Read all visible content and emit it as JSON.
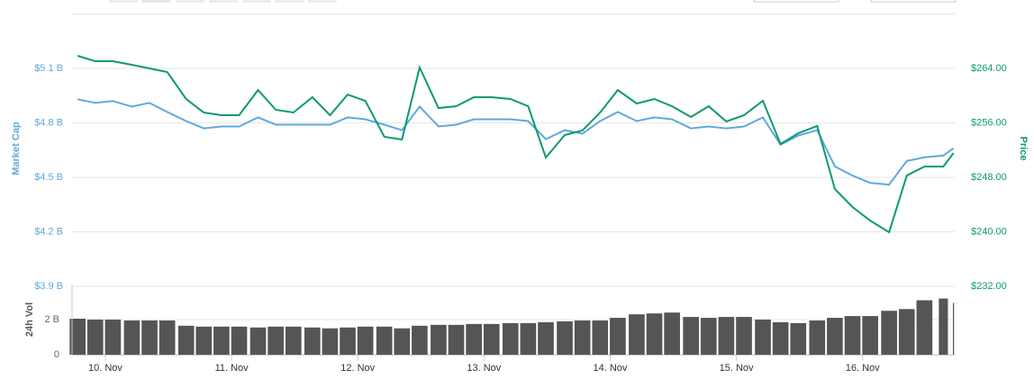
{
  "chart_data": [
    {
      "type": "line",
      "ylabel": "Market Cap",
      "y2label": "Price",
      "x": [
        -0.22,
        -0.08,
        0.06,
        0.21,
        0.35,
        0.49,
        0.64,
        0.78,
        0.92,
        1.06,
        1.21,
        1.35,
        1.49,
        1.64,
        1.78,
        1.92,
        2.06,
        2.21,
        2.35,
        2.49,
        2.64,
        2.78,
        2.92,
        3.06,
        3.21,
        3.35,
        3.49,
        3.64,
        3.78,
        3.92,
        4.06,
        4.21,
        4.35,
        4.49,
        4.64,
        4.78,
        4.92,
        5.06,
        5.21,
        5.35,
        5.49,
        5.64,
        5.78,
        5.92,
        6.06,
        6.21,
        6.35,
        6.49,
        6.64,
        6.72
      ],
      "series": [
        {
          "name": "Market Cap",
          "color": "#5fa9dc",
          "axis": "y",
          "values": [
            4.93,
            4.91,
            4.92,
            4.89,
            4.91,
            4.86,
            4.81,
            4.77,
            4.78,
            4.78,
            4.83,
            4.79,
            4.79,
            4.79,
            4.79,
            4.83,
            4.82,
            4.79,
            4.76,
            4.89,
            4.78,
            4.79,
            4.82,
            4.82,
            4.82,
            4.81,
            4.71,
            4.76,
            4.74,
            4.81,
            4.86,
            4.81,
            4.83,
            4.82,
            4.77,
            4.78,
            4.77,
            4.78,
            4.83,
            4.68,
            4.73,
            4.76,
            4.56,
            4.51,
            4.47,
            4.46,
            4.59,
            4.61,
            4.62,
            4.66
          ]
        },
        {
          "name": "Price",
          "color": "#0c9a6c",
          "axis": "y2",
          "values": [
            265.85,
            265.06,
            265.06,
            264.53,
            264.0,
            263.47,
            259.5,
            257.52,
            257.12,
            257.12,
            260.83,
            257.92,
            257.52,
            259.77,
            257.12,
            260.17,
            259.24,
            253.95,
            253.55,
            264.13,
            258.18,
            258.45,
            259.77,
            259.77,
            259.5,
            258.45,
            250.91,
            254.21,
            254.88,
            257.52,
            260.83,
            258.84,
            259.5,
            258.45,
            256.86,
            258.45,
            256.2,
            257.12,
            259.24,
            252.89,
            254.48,
            255.54,
            246.28,
            243.64,
            241.65,
            239.93,
            248.26,
            249.59,
            249.59,
            251.57
          ]
        }
      ],
      "ylim": [
        3.9,
        5.1
      ],
      "yticks": [
        {
          "value": 3.9,
          "label": "$3.9 B"
        },
        {
          "value": 4.2,
          "label": "$4.2 B"
        },
        {
          "value": 4.5,
          "label": "$4.5 B"
        },
        {
          "value": 4.8,
          "label": "$4.8 B"
        },
        {
          "value": 5.1,
          "label": "$5.1 B"
        }
      ],
      "y2lim": [
        232,
        264
      ],
      "y2ticks": [
        {
          "value": 232,
          "label": "$232.00"
        },
        {
          "value": 240,
          "label": "$240.00"
        },
        {
          "value": 248,
          "label": "$248.00"
        },
        {
          "value": 256,
          "label": "$256.00"
        },
        {
          "value": 264,
          "label": "$264.00"
        }
      ],
      "grid": true
    },
    {
      "type": "bar",
      "ylabel": "24h Vol",
      "color": "#555555",
      "x": [
        -0.22,
        -0.08,
        0.06,
        0.21,
        0.35,
        0.49,
        0.64,
        0.78,
        0.92,
        1.06,
        1.21,
        1.35,
        1.49,
        1.64,
        1.78,
        1.92,
        2.06,
        2.21,
        2.35,
        2.49,
        2.64,
        2.78,
        2.92,
        3.06,
        3.21,
        3.35,
        3.49,
        3.64,
        3.78,
        3.92,
        4.06,
        4.21,
        4.35,
        4.49,
        4.64,
        4.78,
        4.92,
        5.06,
        5.21,
        5.35,
        5.49,
        5.64,
        5.78,
        5.92,
        6.06,
        6.21,
        6.35,
        6.49,
        6.64,
        6.72
      ],
      "values": [
        2.05,
        2.0,
        2.0,
        1.95,
        1.95,
        1.95,
        1.65,
        1.6,
        1.6,
        1.6,
        1.55,
        1.6,
        1.6,
        1.55,
        1.5,
        1.55,
        1.6,
        1.6,
        1.5,
        1.65,
        1.7,
        1.7,
        1.75,
        1.75,
        1.8,
        1.8,
        1.85,
        1.9,
        1.95,
        1.95,
        2.1,
        2.3,
        2.35,
        2.4,
        2.15,
        2.1,
        2.15,
        2.15,
        2.0,
        1.85,
        1.8,
        1.95,
        2.1,
        2.2,
        2.2,
        2.5,
        2.6,
        3.1,
        3.2,
        2.95
      ],
      "ylim": [
        0,
        4
      ],
      "yticks": [
        0,
        {
          "value": 2,
          "label": "2 B"
        }
      ],
      "xlim": [
        -0.264,
        6.73
      ],
      "xticks": [
        {
          "value": 0,
          "label": "10. Nov"
        },
        {
          "value": 1,
          "label": "11. Nov"
        },
        {
          "value": 2,
          "label": "12. Nov"
        },
        {
          "value": 3,
          "label": "13. Nov"
        },
        {
          "value": 4,
          "label": "14. Nov"
        },
        {
          "value": 5,
          "label": "15. Nov"
        },
        {
          "value": 6,
          "label": "16. Nov"
        }
      ]
    }
  ]
}
